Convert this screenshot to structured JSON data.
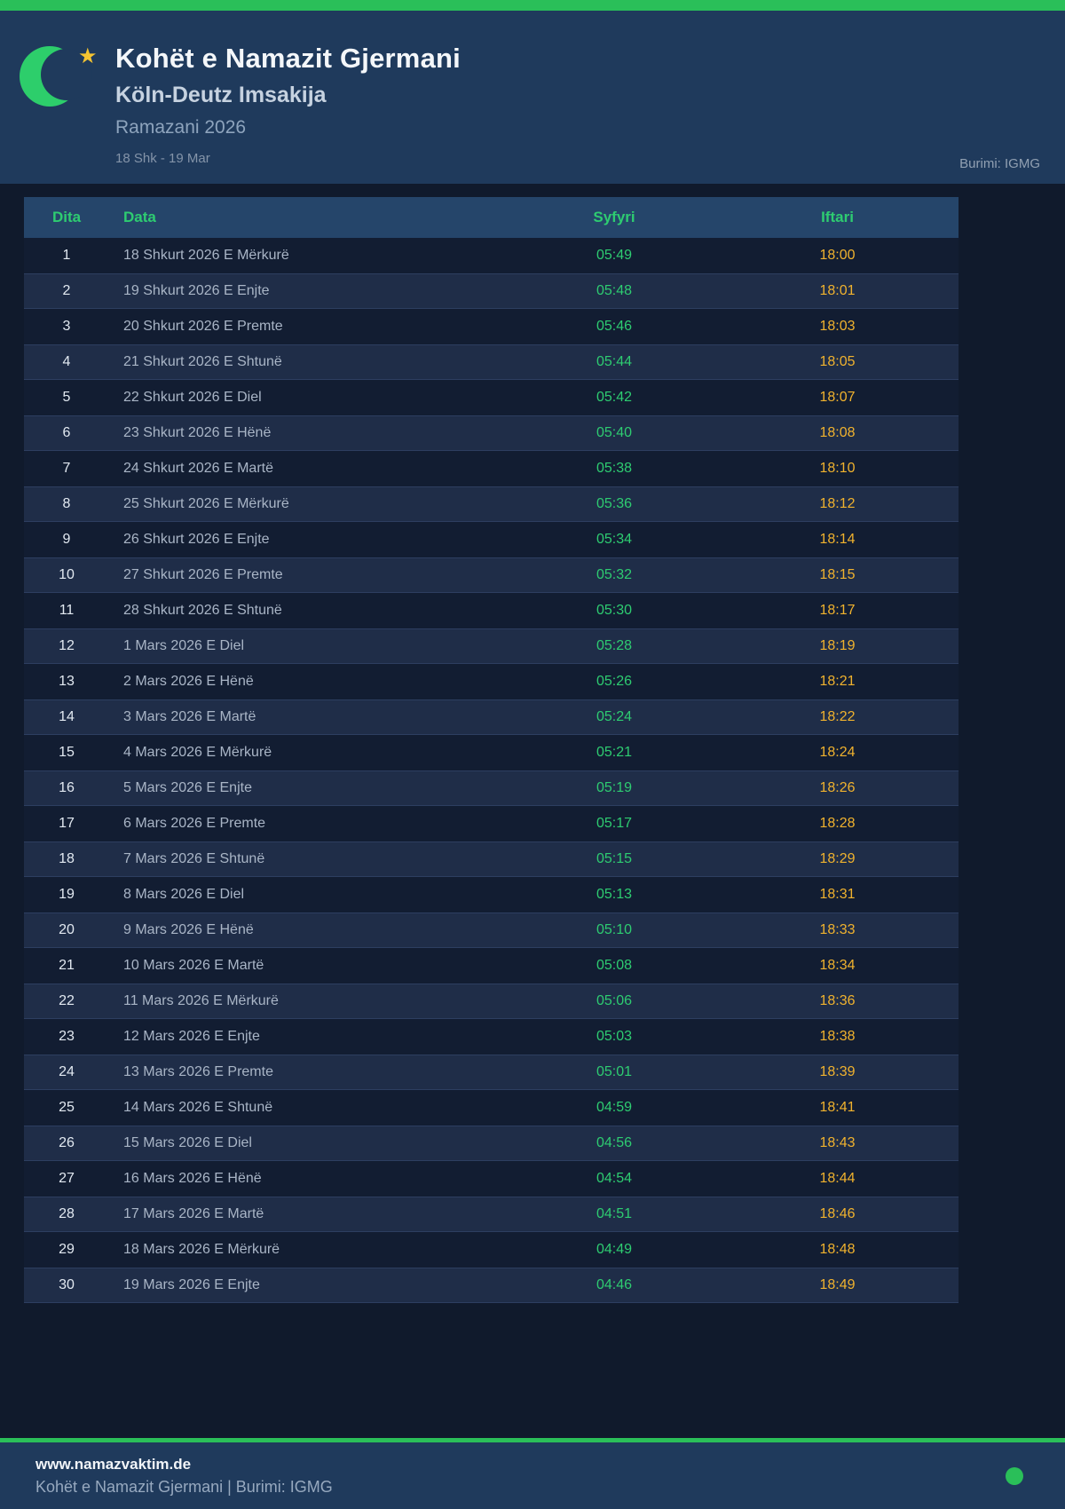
{
  "header": {
    "title": "Kohët e Namazit Gjermani",
    "subtitle": "Köln-Deutz Imsakija",
    "season": "Ramazani 2026",
    "date_range": "18 Shk - 19 Mar",
    "source": "Burimi: IGMG",
    "star_glyph": "★"
  },
  "colors": {
    "accent_green": "#2abf59",
    "moon_green": "#2dce6b",
    "star_yellow": "#f5c431",
    "header_bg": "#1f3a5c",
    "page_bg": "#101a2c",
    "table_header_bg": "#25456a",
    "row_odd_bg": "#121d32",
    "row_even_bg": "#1f2d48",
    "syfyri_time": "#2ecc71",
    "iftari_time": "#f0b22e"
  },
  "table": {
    "columns": [
      "Dita",
      "Data",
      "Syfyri",
      "Iftari"
    ],
    "rows": [
      [
        "1",
        "18 Shkurt 2026 E Mërkurë",
        "05:49",
        "18:00"
      ],
      [
        "2",
        "19 Shkurt 2026 E Enjte",
        "05:48",
        "18:01"
      ],
      [
        "3",
        "20 Shkurt 2026 E Premte",
        "05:46",
        "18:03"
      ],
      [
        "4",
        "21 Shkurt 2026 E Shtunë",
        "05:44",
        "18:05"
      ],
      [
        "5",
        "22 Shkurt 2026 E Diel",
        "05:42",
        "18:07"
      ],
      [
        "6",
        "23 Shkurt 2026 E Hënë",
        "05:40",
        "18:08"
      ],
      [
        "7",
        "24 Shkurt 2026 E Martë",
        "05:38",
        "18:10"
      ],
      [
        "8",
        "25 Shkurt 2026 E Mërkurë",
        "05:36",
        "18:12"
      ],
      [
        "9",
        "26 Shkurt 2026 E Enjte",
        "05:34",
        "18:14"
      ],
      [
        "10",
        "27 Shkurt 2026 E Premte",
        "05:32",
        "18:15"
      ],
      [
        "11",
        "28 Shkurt 2026 E Shtunë",
        "05:30",
        "18:17"
      ],
      [
        "12",
        "1 Mars 2026 E Diel",
        "05:28",
        "18:19"
      ],
      [
        "13",
        "2 Mars 2026 E Hënë",
        "05:26",
        "18:21"
      ],
      [
        "14",
        "3 Mars 2026 E Martë",
        "05:24",
        "18:22"
      ],
      [
        "15",
        "4 Mars 2026 E Mërkurë",
        "05:21",
        "18:24"
      ],
      [
        "16",
        "5 Mars 2026 E Enjte",
        "05:19",
        "18:26"
      ],
      [
        "17",
        "6 Mars 2026 E Premte",
        "05:17",
        "18:28"
      ],
      [
        "18",
        "7 Mars 2026 E Shtunë",
        "05:15",
        "18:29"
      ],
      [
        "19",
        "8 Mars 2026 E Diel",
        "05:13",
        "18:31"
      ],
      [
        "20",
        "9 Mars 2026 E Hënë",
        "05:10",
        "18:33"
      ],
      [
        "21",
        "10 Mars 2026 E Martë",
        "05:08",
        "18:34"
      ],
      [
        "22",
        "11 Mars 2026 E Mërkurë",
        "05:06",
        "18:36"
      ],
      [
        "23",
        "12 Mars 2026 E Enjte",
        "05:03",
        "18:38"
      ],
      [
        "24",
        "13 Mars 2026 E Premte",
        "05:01",
        "18:39"
      ],
      [
        "25",
        "14 Mars 2026 E Shtunë",
        "04:59",
        "18:41"
      ],
      [
        "26",
        "15 Mars 2026 E Diel",
        "04:56",
        "18:43"
      ],
      [
        "27",
        "16 Mars 2026 E Hënë",
        "04:54",
        "18:44"
      ],
      [
        "28",
        "17 Mars 2026 E Martë",
        "04:51",
        "18:46"
      ],
      [
        "29",
        "18 Mars 2026 E Mërkurë",
        "04:49",
        "18:48"
      ],
      [
        "30",
        "19 Mars 2026 E Enjte",
        "04:46",
        "18:49"
      ]
    ]
  },
  "footer": {
    "website": "www.namazvaktim.de",
    "tagline": "Kohët e Namazit Gjermani | Burimi: IGMG"
  }
}
